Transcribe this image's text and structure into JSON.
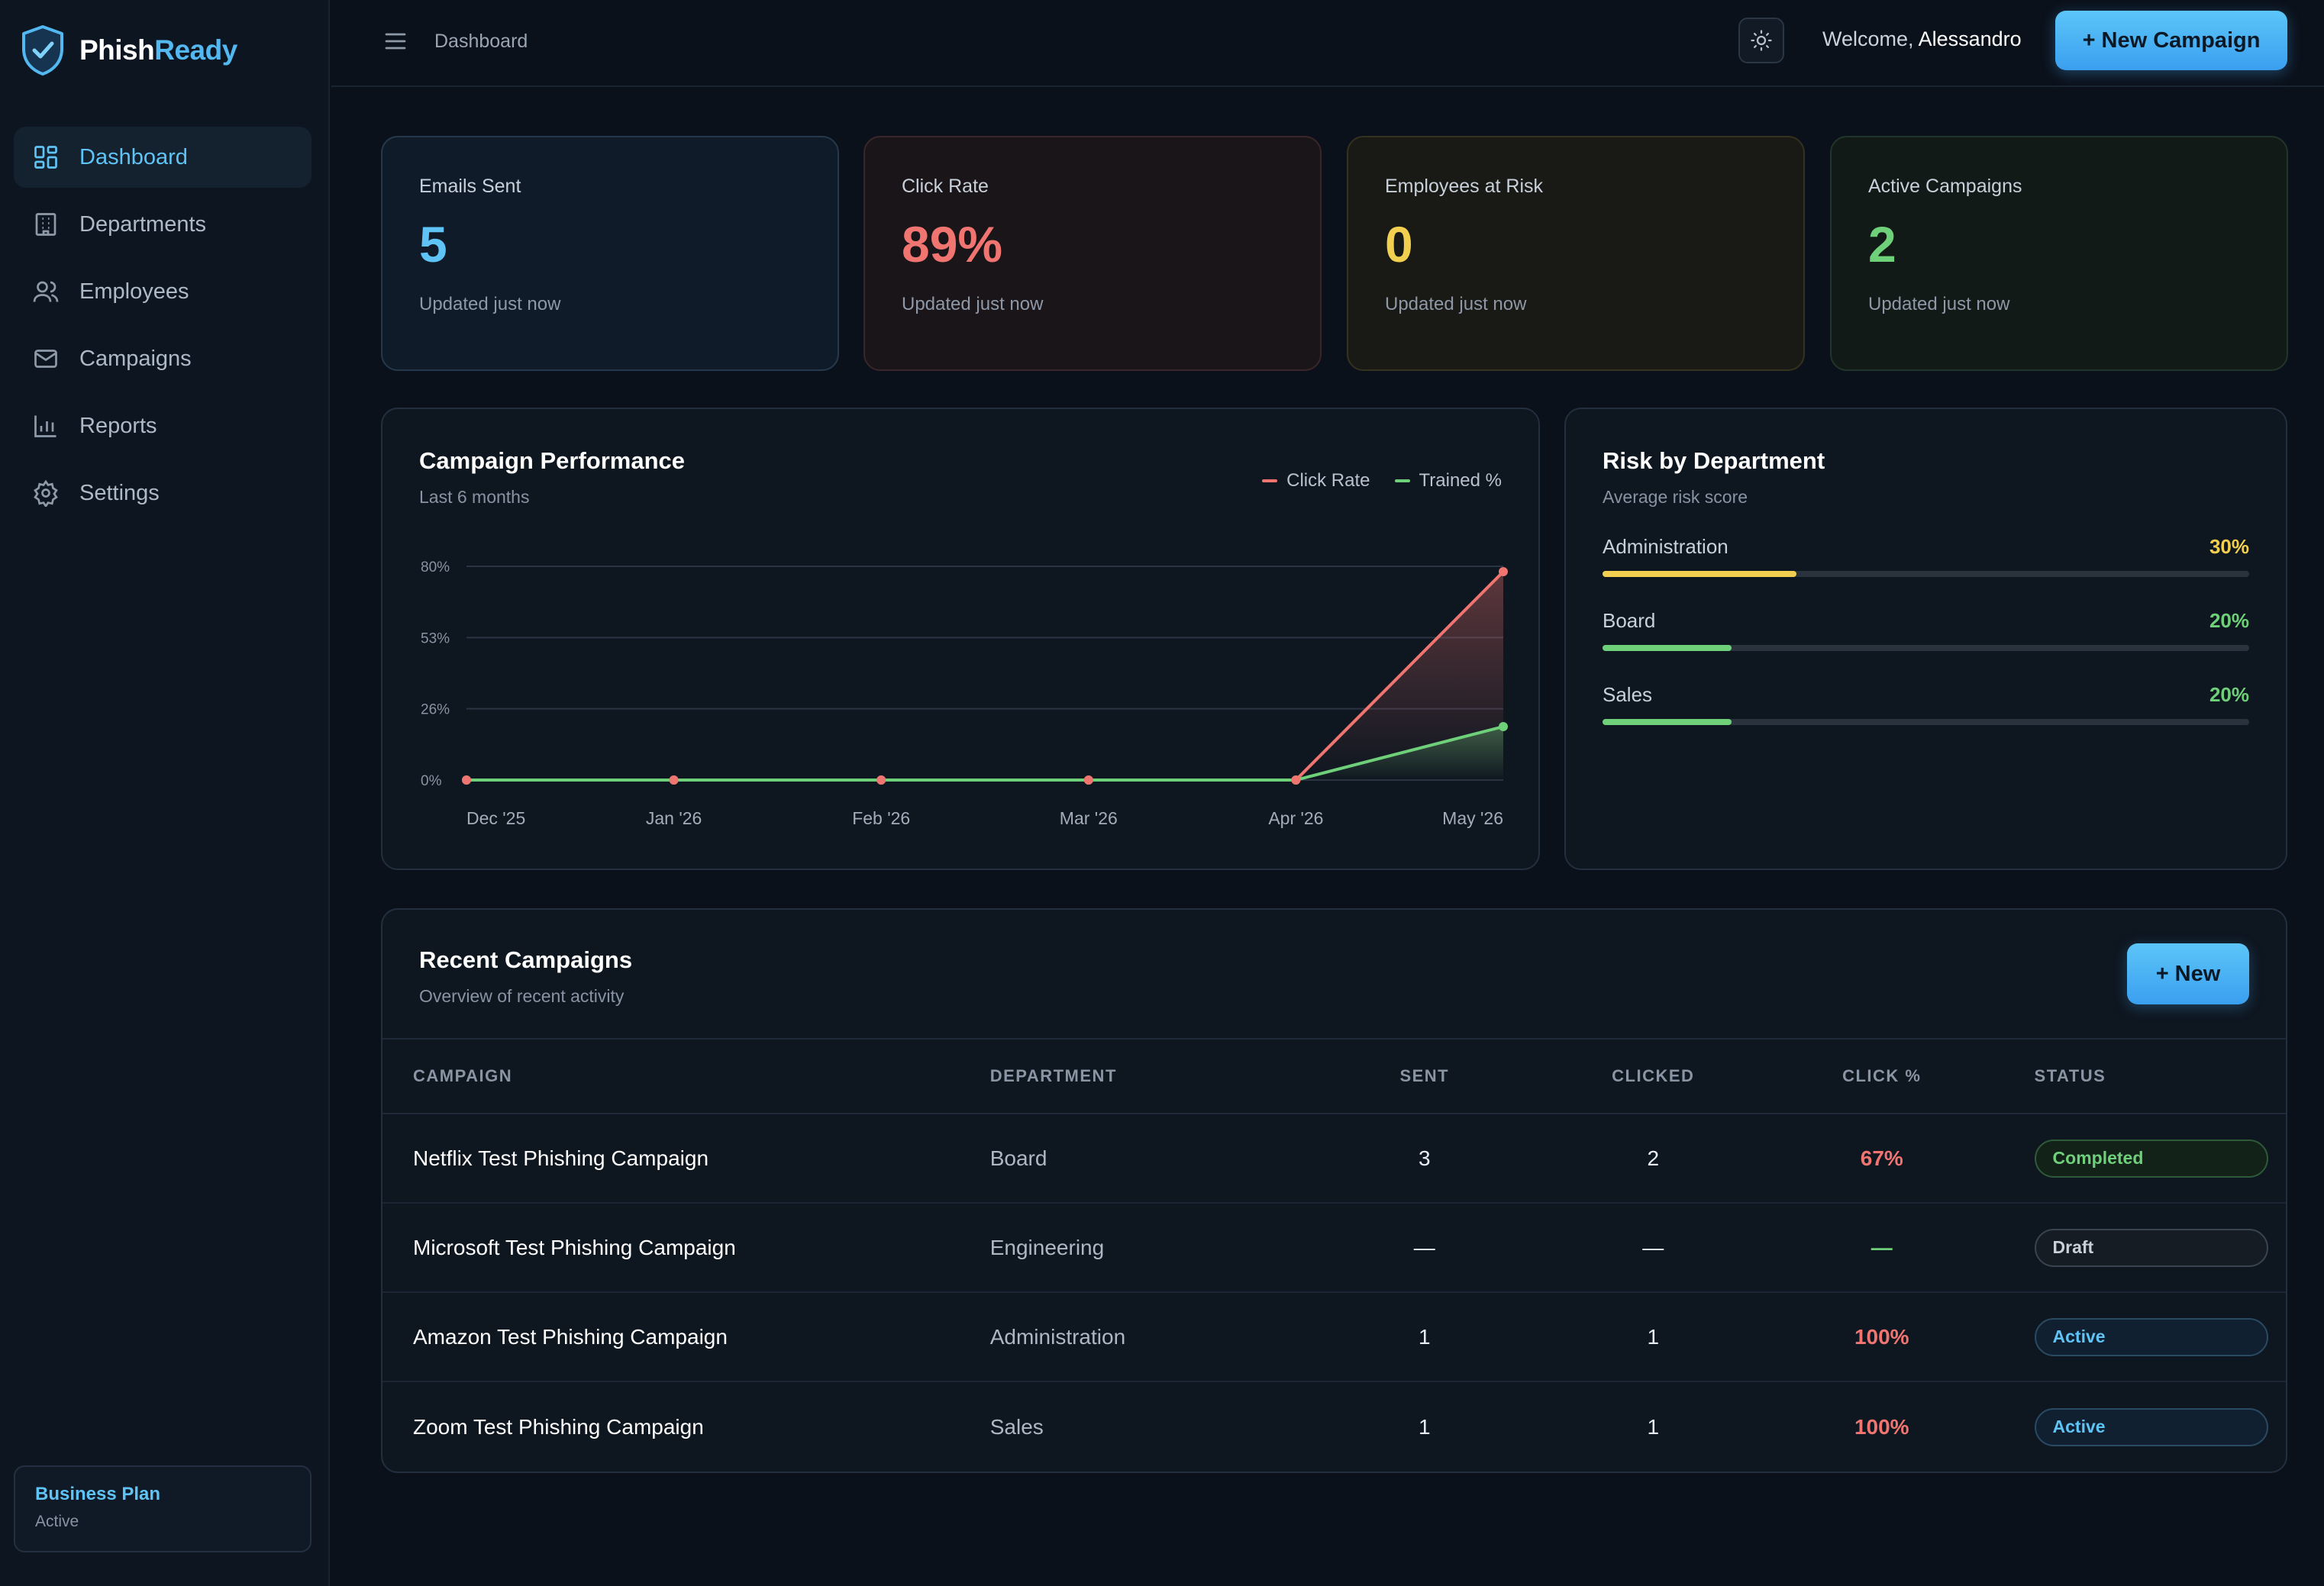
{
  "brand": {
    "name_part1": "Phish",
    "name_part2": "Ready"
  },
  "sidebar": {
    "items": [
      {
        "label": "Dashboard",
        "icon": "dashboard-icon",
        "active": true
      },
      {
        "label": "Departments",
        "icon": "building-icon",
        "active": false
      },
      {
        "label": "Employees",
        "icon": "users-icon",
        "active": false
      },
      {
        "label": "Campaigns",
        "icon": "mail-icon",
        "active": false
      },
      {
        "label": "Reports",
        "icon": "bar-chart-icon",
        "active": false
      },
      {
        "label": "Settings",
        "icon": "gear-icon",
        "active": false
      }
    ],
    "plan": {
      "title": "Business Plan",
      "status": "Active"
    }
  },
  "header": {
    "breadcrumb": "Dashboard",
    "welcome_prefix": "Welcome, ",
    "user_name": "Alessandro",
    "new_campaign_label": "+ New Campaign"
  },
  "stats": [
    {
      "label": "Emails Sent",
      "value": "5",
      "sub": "Updated just now",
      "color": "#5fc3f5"
    },
    {
      "label": "Click Rate",
      "value": "89%",
      "sub": "Updated just now",
      "color": "#f07470"
    },
    {
      "label": "Employees at Risk",
      "value": "0",
      "sub": "Updated just now",
      "color": "#f3cf4f"
    },
    {
      "label": "Active Campaigns",
      "value": "2",
      "sub": "Updated just now",
      "color": "#6fd07a"
    }
  ],
  "performance": {
    "title": "Campaign Performance",
    "subtitle": "Last 6 months"
  },
  "chart_data": {
    "type": "line",
    "title": "Campaign Performance",
    "subtitle": "Last 6 months",
    "x": [
      "Dec '25",
      "Jan '26",
      "Feb '26",
      "Mar '26",
      "Apr '26",
      "May '26"
    ],
    "y_ticks": [
      "80%",
      "53%",
      "26%",
      "0%"
    ],
    "ylim": [
      0,
      80
    ],
    "grid": true,
    "legend_position": "top-right",
    "series": [
      {
        "name": "Click Rate",
        "color": "#f07470",
        "values": [
          0,
          0,
          0,
          0,
          0,
          78
        ]
      },
      {
        "name": "Trained %",
        "color": "#6fd07a",
        "values": [
          0,
          0,
          0,
          0,
          0,
          20
        ]
      }
    ]
  },
  "risk": {
    "title": "Risk by Department",
    "subtitle": "Average risk score",
    "items": [
      {
        "name": "Administration",
        "value": "30%",
        "fraction": 0.3,
        "color": "#f3cf4f"
      },
      {
        "name": "Board",
        "value": "20%",
        "fraction": 0.2,
        "color": "#6fd07a"
      },
      {
        "name": "Sales",
        "value": "20%",
        "fraction": 0.2,
        "color": "#6fd07a"
      }
    ]
  },
  "recent": {
    "title": "Recent Campaigns",
    "subtitle": "Overview of recent activity",
    "new_label": "+ New",
    "columns": [
      "CAMPAIGN",
      "DEPARTMENT",
      "SENT",
      "CLICKED",
      "CLICK %",
      "STATUS"
    ],
    "rows": [
      {
        "campaign": "Netflix Test Phishing Campaign",
        "department": "Board",
        "sent": "3",
        "clicked": "2",
        "click_pct": "67%",
        "pct_color": "#f07470",
        "status": "Completed",
        "status_color": "#6fd07a"
      },
      {
        "campaign": "Microsoft Test Phishing Campaign",
        "department": "Engineering",
        "sent": "—",
        "clicked": "—",
        "click_pct": "—",
        "pct_color": "#6fd07a",
        "status": "Draft",
        "status_color": "#c8d0da"
      },
      {
        "campaign": "Amazon Test Phishing Campaign",
        "department": "Administration",
        "sent": "1",
        "clicked": "1",
        "click_pct": "100%",
        "pct_color": "#f07470",
        "status": "Active",
        "status_color": "#5fc3f5"
      },
      {
        "campaign": "Zoom Test Phishing Campaign",
        "department": "Sales",
        "sent": "1",
        "clicked": "1",
        "click_pct": "100%",
        "pct_color": "#f07470",
        "status": "Active",
        "status_color": "#5fc3f5"
      }
    ]
  }
}
